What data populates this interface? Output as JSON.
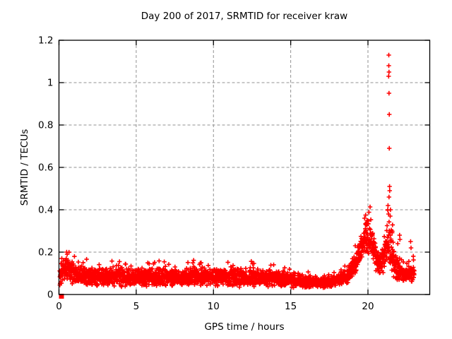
{
  "window": {
    "background_color": "#ffffff"
  },
  "chart_data": {
    "type": "scatter",
    "title": "Day 200 of 2017, SRMTID for receiver kraw",
    "xlabel": "GPS time / hours",
    "ylabel": "SRMTID / TECUs",
    "xlim": [
      0,
      24
    ],
    "ylim": [
      0,
      1.2
    ],
    "xticks": {
      "values": [
        0,
        5,
        10,
        15,
        20
      ],
      "labels": [
        "0",
        "5",
        "10",
        "15",
        "20"
      ]
    },
    "yticks": {
      "values": [
        0,
        0.2,
        0.4,
        0.6,
        0.8,
        1.0,
        1.2
      ],
      "labels": [
        "0",
        "0.2",
        "0.4",
        "0.6",
        "0.8",
        "1",
        "1.2"
      ]
    },
    "grid": true,
    "legend": "none",
    "marker": "plus",
    "marker_color": "#ff0000",
    "grid_color": "#919191",
    "border_color": "#000000",
    "text_color": "#000000",
    "seed": 20170200,
    "sample_step_hours": 0.008333,
    "time_range": [
      0.05,
      23.0
    ],
    "envelope_comment": "control points [hour, mean SRMTID, half-spread] describing the dense scatter band read from the plot",
    "envelope": [
      [
        0.0,
        0.07,
        0.05
      ],
      [
        0.4,
        0.13,
        0.06
      ],
      [
        0.7,
        0.12,
        0.07
      ],
      [
        1.2,
        0.09,
        0.05
      ],
      [
        2.0,
        0.085,
        0.05
      ],
      [
        3.0,
        0.08,
        0.045
      ],
      [
        4.0,
        0.085,
        0.05
      ],
      [
        5.0,
        0.08,
        0.04
      ],
      [
        6.0,
        0.085,
        0.05
      ],
      [
        7.0,
        0.08,
        0.045
      ],
      [
        8.0,
        0.08,
        0.045
      ],
      [
        9.0,
        0.085,
        0.05
      ],
      [
        10.0,
        0.08,
        0.045
      ],
      [
        11.0,
        0.08,
        0.045
      ],
      [
        12.0,
        0.08,
        0.05
      ],
      [
        13.0,
        0.08,
        0.045
      ],
      [
        14.0,
        0.075,
        0.04
      ],
      [
        15.0,
        0.07,
        0.04
      ],
      [
        16.0,
        0.06,
        0.03
      ],
      [
        17.0,
        0.055,
        0.025
      ],
      [
        18.0,
        0.065,
        0.03
      ],
      [
        18.7,
        0.09,
        0.04
      ],
      [
        19.2,
        0.14,
        0.06
      ],
      [
        19.6,
        0.22,
        0.09
      ],
      [
        19.9,
        0.27,
        0.1
      ],
      [
        20.2,
        0.26,
        0.1
      ],
      [
        20.5,
        0.18,
        0.07
      ],
      [
        20.8,
        0.13,
        0.06
      ],
      [
        21.1,
        0.18,
        0.09
      ],
      [
        21.3,
        0.25,
        0.13
      ],
      [
        21.5,
        0.22,
        0.12
      ],
      [
        21.8,
        0.13,
        0.07
      ],
      [
        22.1,
        0.1,
        0.045
      ],
      [
        22.4,
        0.09,
        0.035
      ],
      [
        22.7,
        0.1,
        0.05
      ],
      [
        23.0,
        0.12,
        0.06
      ]
    ],
    "outliers_comment": "individually visible high points [hour, SRMTID]",
    "outliers": [
      [
        21.35,
        1.13
      ],
      [
        21.35,
        1.08
      ],
      [
        21.36,
        1.05
      ],
      [
        21.34,
        1.03
      ],
      [
        21.36,
        0.95
      ],
      [
        21.38,
        0.85
      ],
      [
        21.38,
        0.69
      ],
      [
        21.4,
        0.51
      ],
      [
        21.41,
        0.49
      ],
      [
        21.36,
        0.46
      ],
      [
        21.3,
        0.42
      ],
      [
        21.28,
        0.4
      ],
      [
        21.46,
        0.4
      ],
      [
        21.33,
        0.38
      ],
      [
        21.44,
        0.37
      ],
      [
        19.85,
        0.375
      ],
      [
        19.78,
        0.36
      ],
      [
        19.95,
        0.35
      ],
      [
        22.05,
        0.28
      ],
      [
        22.07,
        0.26
      ],
      [
        21.93,
        0.24
      ],
      [
        22.76,
        0.25
      ],
      [
        22.79,
        0.22
      ],
      [
        0.5,
        0.2
      ],
      [
        0.53,
        0.19
      ]
    ],
    "origin_marker": {
      "shape": "filled-square",
      "x": 0.16,
      "y": -0.008,
      "size": 7
    }
  }
}
